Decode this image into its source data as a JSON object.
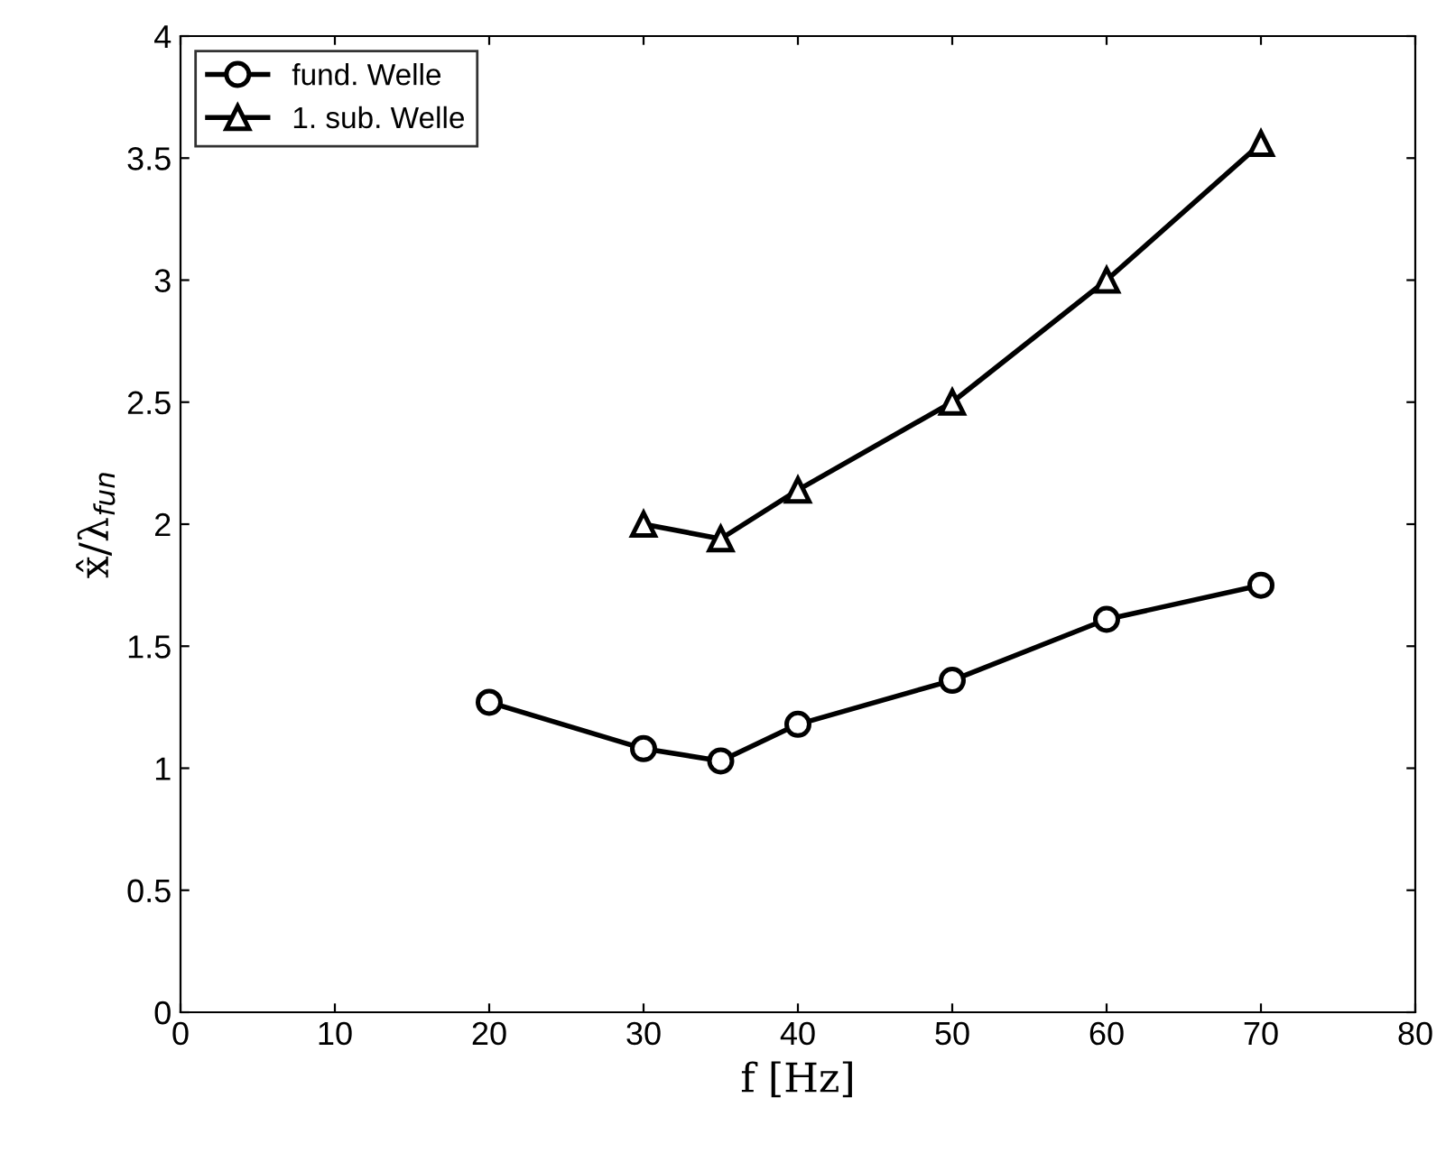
{
  "chart_data": {
    "type": "line",
    "xlabel": "f [Hz]",
    "ylabel": "x̂/λ$_{fun}$",
    "xlim": [
      0,
      80
    ],
    "xticks": [
      0,
      10,
      20,
      30,
      40,
      50,
      60,
      70,
      80
    ],
    "ylim": [
      0,
      4
    ],
    "yticks": [
      0,
      0.5,
      1,
      1.5,
      2,
      2.5,
      3,
      3.5,
      4
    ],
    "grid": false,
    "legend": "top left",
    "line_style": "solid",
    "series": [
      {
        "name": "fund. Welle",
        "color": "#000000",
        "marker": "circle",
        "x": [
          20,
          30,
          35,
          40,
          50,
          60,
          70
        ],
        "values": [
          1.27,
          1.08,
          1.03,
          1.18,
          1.36,
          1.61,
          1.75
        ]
      },
      {
        "name": "1. sub. Welle",
        "color": "#000000",
        "marker": "triangle",
        "x": [
          30,
          35,
          40,
          50,
          60,
          70
        ],
        "values": [
          2.0,
          1.94,
          2.14,
          2.5,
          3.0,
          3.56
        ]
      }
    ]
  }
}
